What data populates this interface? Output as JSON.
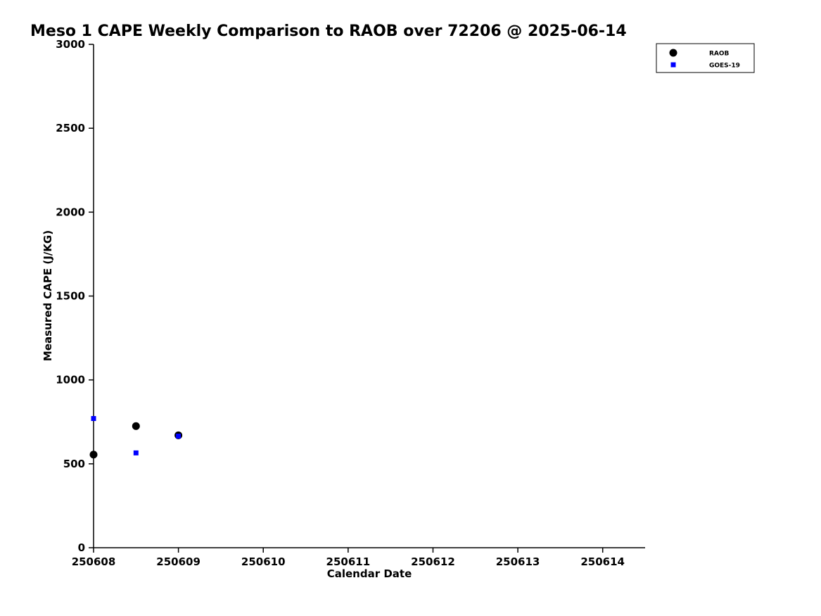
{
  "chart_data": {
    "type": "scatter",
    "title": "Meso 1 CAPE Weekly Comparison to RAOB over 72206 @ 2025-06-14",
    "xlabel": "Calendar Date",
    "ylabel": "Measured CAPE (J/KG)",
    "xlim": [
      250608,
      250614.5
    ],
    "ylim": [
      0,
      3000
    ],
    "xticks": [
      250608,
      250609,
      250610,
      250611,
      250612,
      250613,
      250614
    ],
    "yticks": [
      0,
      500,
      1000,
      1500,
      2000,
      2500,
      3000
    ],
    "grid": false,
    "legend_position": "upper-right",
    "series": [
      {
        "name": "RAOB",
        "marker": "circle",
        "color": "#000000",
        "x": [
          250608,
          250608.5,
          250609
        ],
        "y": [
          555,
          725,
          670
        ]
      },
      {
        "name": "GOES-19",
        "marker": "square",
        "color": "#0000ff",
        "x": [
          250608,
          250608.5,
          250609
        ],
        "y": [
          770,
          565,
          665
        ]
      }
    ]
  }
}
